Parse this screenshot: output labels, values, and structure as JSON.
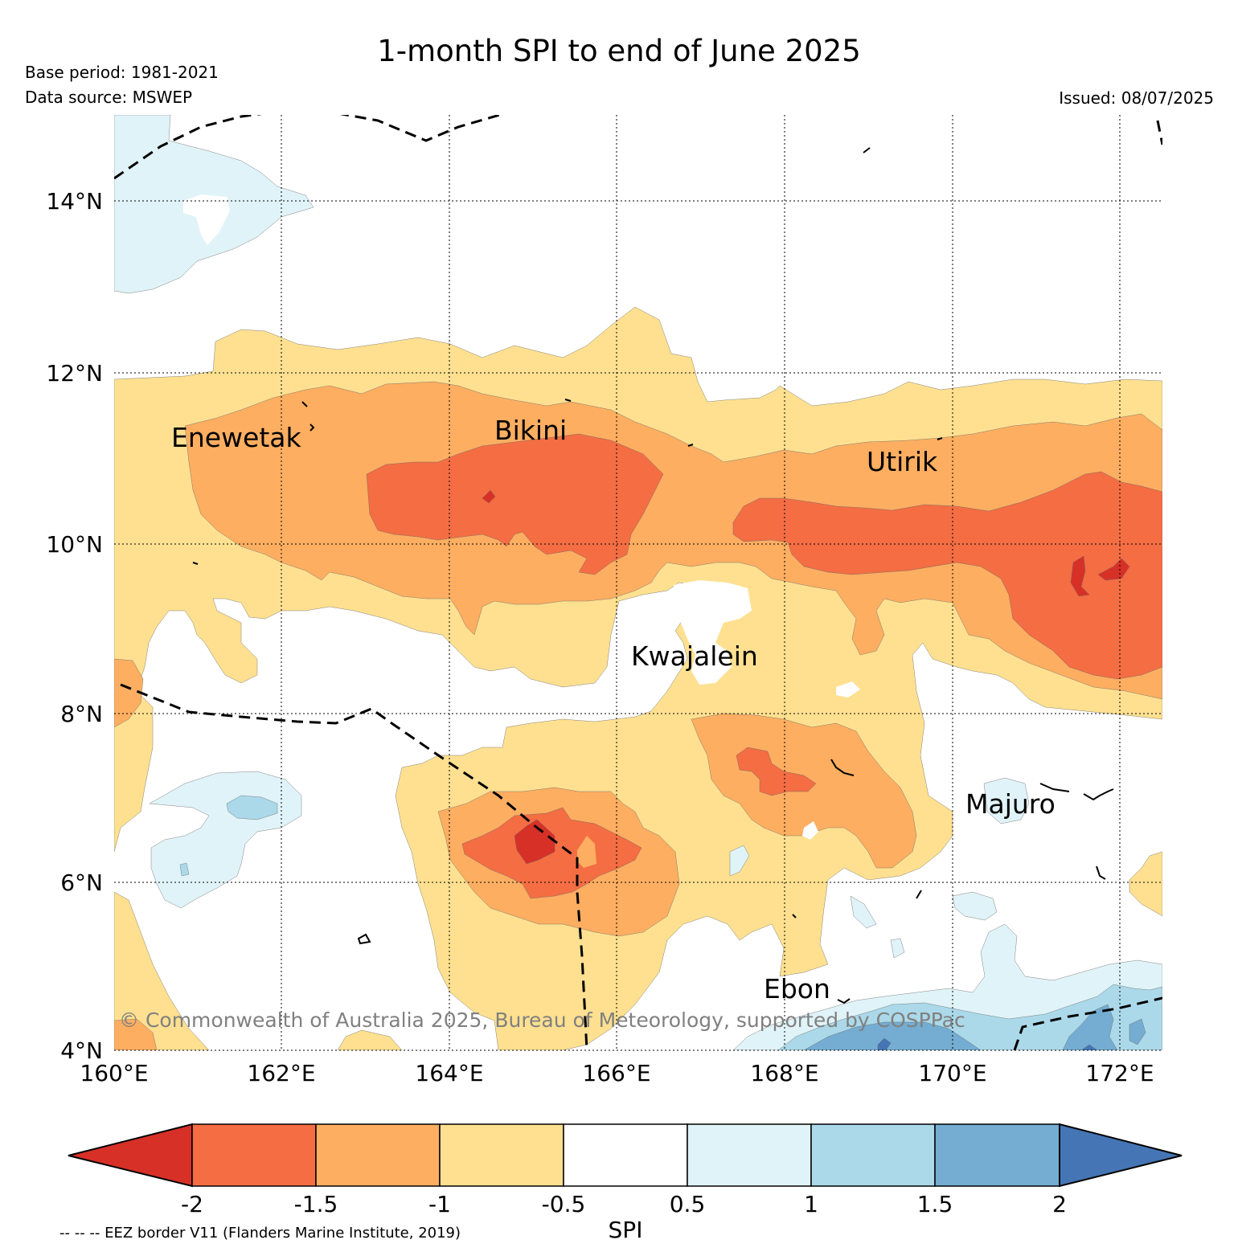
{
  "title": "1-month SPI to end of June 2025",
  "base_period": "Base period: 1981-2021",
  "data_source": "Data source: MSWEP",
  "issued": "Issued: 08/07/2025",
  "copyright": "© Commonwealth of Australia 2025, Bureau of Meteorology, supported by COSPPac",
  "eez_note": "-- -- -- EEZ border V11 (Flanders Marine Institute, 2019)",
  "colorbar": {
    "label": "SPI",
    "ticks": [
      "-2",
      "-1.5",
      "-1",
      "-0.5",
      "0.5",
      "1",
      "1.5",
      "2"
    ],
    "colors": [
      "#d73027",
      "#f46d43",
      "#fdae61",
      "#fee090",
      "#ffffff",
      "#e0f3f8",
      "#abd9e9",
      "#74add1",
      "#4575b4"
    ]
  },
  "axes": {
    "lon_labels": [
      "160°E",
      "162°E",
      "164°E",
      "166°E",
      "168°E",
      "170°E",
      "172°E"
    ],
    "lat_labels": [
      "14°N",
      "12°N",
      "10°N",
      "8°N",
      "6°N",
      "4°N"
    ]
  },
  "places": [
    {
      "name": "Enewetak"
    },
    {
      "name": "Bikini"
    },
    {
      "name": "Utirik"
    },
    {
      "name": "Kwajalein"
    },
    {
      "name": "Majuro"
    },
    {
      "name": "Ebon"
    }
  ]
}
